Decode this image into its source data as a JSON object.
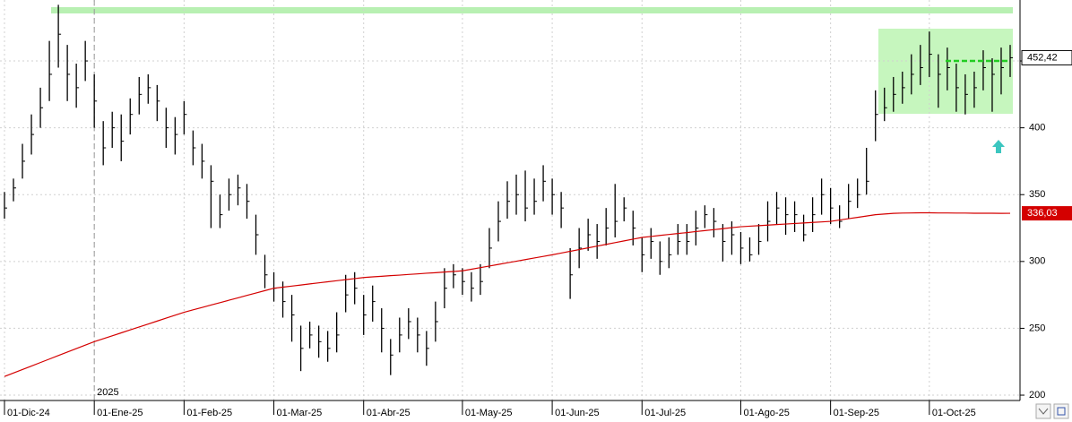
{
  "chart_data": {
    "type": "ohlc",
    "categories": [
      "01-Dic-24",
      null,
      null,
      null,
      null,
      null,
      null,
      null,
      null,
      null,
      "01-Ene-25",
      null,
      null,
      null,
      null,
      null,
      null,
      null,
      null,
      null,
      "01-Feb-25",
      null,
      null,
      null,
      null,
      null,
      null,
      null,
      null,
      null,
      "01-Mar-25",
      null,
      null,
      null,
      null,
      null,
      null,
      null,
      null,
      null,
      "01-Abr-25",
      null,
      null,
      null,
      null,
      null,
      null,
      null,
      null,
      null,
      null,
      "01-May-25",
      null,
      null,
      null,
      null,
      null,
      null,
      null,
      null,
      null,
      "01-Jun-25",
      null,
      null,
      null,
      null,
      null,
      null,
      null,
      null,
      null,
      "01-Jul-25",
      null,
      null,
      null,
      null,
      null,
      null,
      null,
      null,
      null,
      null,
      "01-Ago-25",
      null,
      null,
      null,
      null,
      null,
      null,
      null,
      null,
      null,
      "01-Sep-25",
      null,
      null,
      null,
      null,
      null,
      null,
      null,
      null,
      null,
      null,
      "01-Oct-25",
      null,
      null,
      null,
      null,
      null,
      null,
      null,
      null,
      null
    ],
    "year_label": "2025",
    "ohlc": {
      "color": "#000000",
      "last_value_label": "452,42",
      "high": [
        352,
        362,
        388,
        410,
        430,
        465,
        492,
        462,
        448,
        465,
        440,
        405,
        412,
        410,
        422,
        438,
        440,
        432,
        415,
        408,
        420,
        398,
        388,
        372,
        350,
        362,
        365,
        358,
        335,
        305,
        292,
        285,
        275,
        252,
        255,
        252,
        248,
        262,
        290,
        292,
        275,
        282,
        265,
        242,
        258,
        265,
        258,
        248,
        270,
        295,
        298,
        295,
        292,
        298,
        325,
        345,
        360,
        365,
        368,
        362,
        372,
        362,
        352,
        310,
        325,
        332,
        328,
        340,
        358,
        348,
        338,
        318,
        325,
        315,
        318,
        328,
        328,
        338,
        342,
        340,
        328,
        330,
        322,
        318,
        328,
        345,
        352,
        348,
        345,
        335,
        348,
        362,
        355,
        342,
        358,
        362,
        385,
        428,
        430,
        438,
        442,
        455,
        462,
        472,
        455,
        460,
        448,
        440,
        442,
        458,
        452,
        460,
        462
      ],
      "low": [
        332,
        345,
        362,
        380,
        400,
        420,
        445,
        420,
        415,
        435,
        400,
        372,
        385,
        375,
        395,
        410,
        418,
        405,
        385,
        380,
        395,
        372,
        362,
        325,
        325,
        338,
        342,
        332,
        305,
        280,
        270,
        258,
        240,
        218,
        235,
        228,
        225,
        232,
        262,
        268,
        245,
        255,
        232,
        215,
        232,
        242,
        232,
        222,
        240,
        265,
        280,
        275,
        270,
        275,
        295,
        315,
        332,
        335,
        330,
        335,
        345,
        335,
        325,
        272,
        295,
        308,
        302,
        312,
        318,
        330,
        312,
        292,
        302,
        290,
        295,
        305,
        305,
        312,
        325,
        318,
        300,
        305,
        298,
        300,
        305,
        315,
        328,
        320,
        322,
        315,
        322,
        335,
        328,
        325,
        332,
        340,
        350,
        390,
        405,
        412,
        418,
        425,
        432,
        438,
        415,
        428,
        412,
        410,
        415,
        428,
        412,
        425,
        438
      ],
      "close": [
        340,
        355,
        375,
        395,
        415,
        440,
        470,
        440,
        430,
        450,
        420,
        385,
        400,
        390,
        410,
        425,
        430,
        420,
        400,
        395,
        410,
        385,
        375,
        360,
        335,
        350,
        355,
        345,
        320,
        290,
        280,
        270,
        260,
        235,
        245,
        240,
        235,
        245,
        275,
        280,
        260,
        270,
        250,
        230,
        245,
        255,
        245,
        235,
        255,
        280,
        290,
        285,
        280,
        285,
        310,
        330,
        345,
        350,
        340,
        345,
        360,
        350,
        340,
        290,
        310,
        320,
        315,
        325,
        330,
        340,
        325,
        305,
        315,
        300,
        305,
        315,
        315,
        325,
        335,
        330,
        315,
        320,
        310,
        305,
        315,
        330,
        340,
        335,
        335,
        320,
        335,
        350,
        340,
        330,
        345,
        350,
        360,
        410,
        415,
        425,
        430,
        440,
        445,
        455,
        440,
        445,
        430,
        425,
        430,
        445,
        440,
        445,
        452.42
      ]
    },
    "moving_average": {
      "color": "#d40000",
      "last_value_label": "336,03",
      "values": [
        214,
        216.6,
        219.2,
        221.8,
        224.4,
        227,
        229.6,
        232.2,
        234.8,
        237.4,
        240,
        242.2,
        244.4,
        246.6,
        248.8,
        251,
        253.2,
        255.4,
        257.6,
        259.8,
        262,
        263.8,
        265.6,
        267.4,
        269.2,
        271,
        272.8,
        274.6,
        276.4,
        278.2,
        280,
        280.8,
        281.6,
        282.4,
        283.2,
        284,
        284.8,
        285.6,
        286.4,
        287.2,
        288,
        288.5,
        288.9,
        289.4,
        289.8,
        290.3,
        290.7,
        291.2,
        291.6,
        292.1,
        292.5,
        293,
        294.2,
        295.4,
        296.6,
        297.8,
        299,
        300.2,
        301.4,
        302.6,
        303.8,
        305,
        306.3,
        307.6,
        308.9,
        310.2,
        311.5,
        312.8,
        314.1,
        315.4,
        316.7,
        318,
        318.7,
        319.5,
        320.2,
        320.9,
        321.6,
        322.4,
        323.1,
        323.8,
        324.5,
        325.3,
        326,
        326.4,
        326.8,
        327.2,
        327.6,
        328,
        328.4,
        328.8,
        329.2,
        329.6,
        330,
        331,
        332,
        333,
        334,
        335,
        335.5,
        336,
        336.2,
        336.3,
        336.4,
        336.4,
        336.3,
        336.3,
        336.2,
        336.2,
        336.1,
        336.1,
        336.1,
        336,
        336.03
      ]
    },
    "ylim": [
      196,
      495.6
    ],
    "yticks": [
      200,
      250,
      300,
      350,
      400,
      450
    ],
    "grid": true
  }
}
